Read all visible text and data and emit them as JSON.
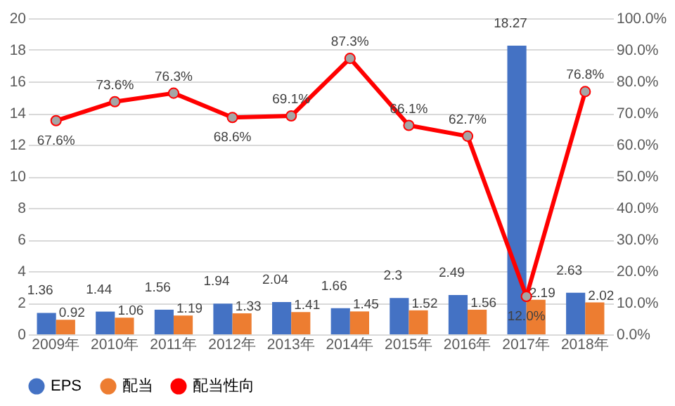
{
  "chart_data": {
    "type": "bar",
    "categories": [
      "2009年",
      "2010年",
      "2011年",
      "2012年",
      "2013年",
      "2014年",
      "2015年",
      "2016年",
      "2017年",
      "2018年"
    ],
    "series": [
      {
        "name": "EPS",
        "color": "#4472c4",
        "values": [
          1.36,
          1.44,
          1.56,
          1.94,
          2.04,
          1.66,
          2.3,
          2.49,
          18.27,
          2.63
        ],
        "value_labels": [
          "1.36",
          "1.44",
          "1.56",
          "1.94",
          "2.04",
          "1.66",
          "2.3",
          "2.49",
          "18.27",
          "2.63"
        ]
      },
      {
        "name": "配当",
        "color": "#ed7d31",
        "values": [
          0.92,
          1.06,
          1.19,
          1.33,
          1.41,
          1.45,
          1.52,
          1.56,
          2.19,
          2.02
        ],
        "value_labels": [
          "0.92",
          "1.06",
          "1.19",
          "1.33",
          "1.41",
          "1.45",
          "1.52",
          "1.56",
          "2.19",
          "2.02"
        ]
      },
      {
        "name": "配当性向",
        "type": "line",
        "axis": "y2",
        "color": "#ff0000",
        "marker": "circle",
        "values": [
          67.6,
          73.6,
          76.3,
          68.6,
          69.1,
          87.3,
          66.1,
          62.7,
          12.0,
          76.8
        ],
        "value_labels": [
          "67.6%",
          "73.6%",
          "76.3%",
          "68.6%",
          "69.1%",
          "87.3%",
          "66.1%",
          "62.7%",
          "12.0%",
          "76.8%"
        ]
      }
    ],
    "ylim": [
      0,
      20
    ],
    "yticks": [
      0,
      2,
      4,
      6,
      8,
      10,
      12,
      14,
      16,
      18,
      20
    ],
    "y2lim": [
      0,
      100
    ],
    "y2ticks": [
      {
        "value": 0,
        "label": "0.0%"
      },
      {
        "value": 10,
        "label": "10.0%"
      },
      {
        "value": 20,
        "label": "20.0%"
      },
      {
        "value": 30,
        "label": "30.0%"
      },
      {
        "value": 40,
        "label": "40.0%"
      },
      {
        "value": 50,
        "label": "50.0%"
      },
      {
        "value": 60,
        "label": "60.0%"
      },
      {
        "value": 70,
        "label": "70.0%"
      },
      {
        "value": 80,
        "label": "80.0%"
      },
      {
        "value": 90,
        "label": "90.0%"
      },
      {
        "value": 100,
        "label": "100.0%"
      }
    ],
    "grid": "y",
    "legend": "bottom"
  }
}
